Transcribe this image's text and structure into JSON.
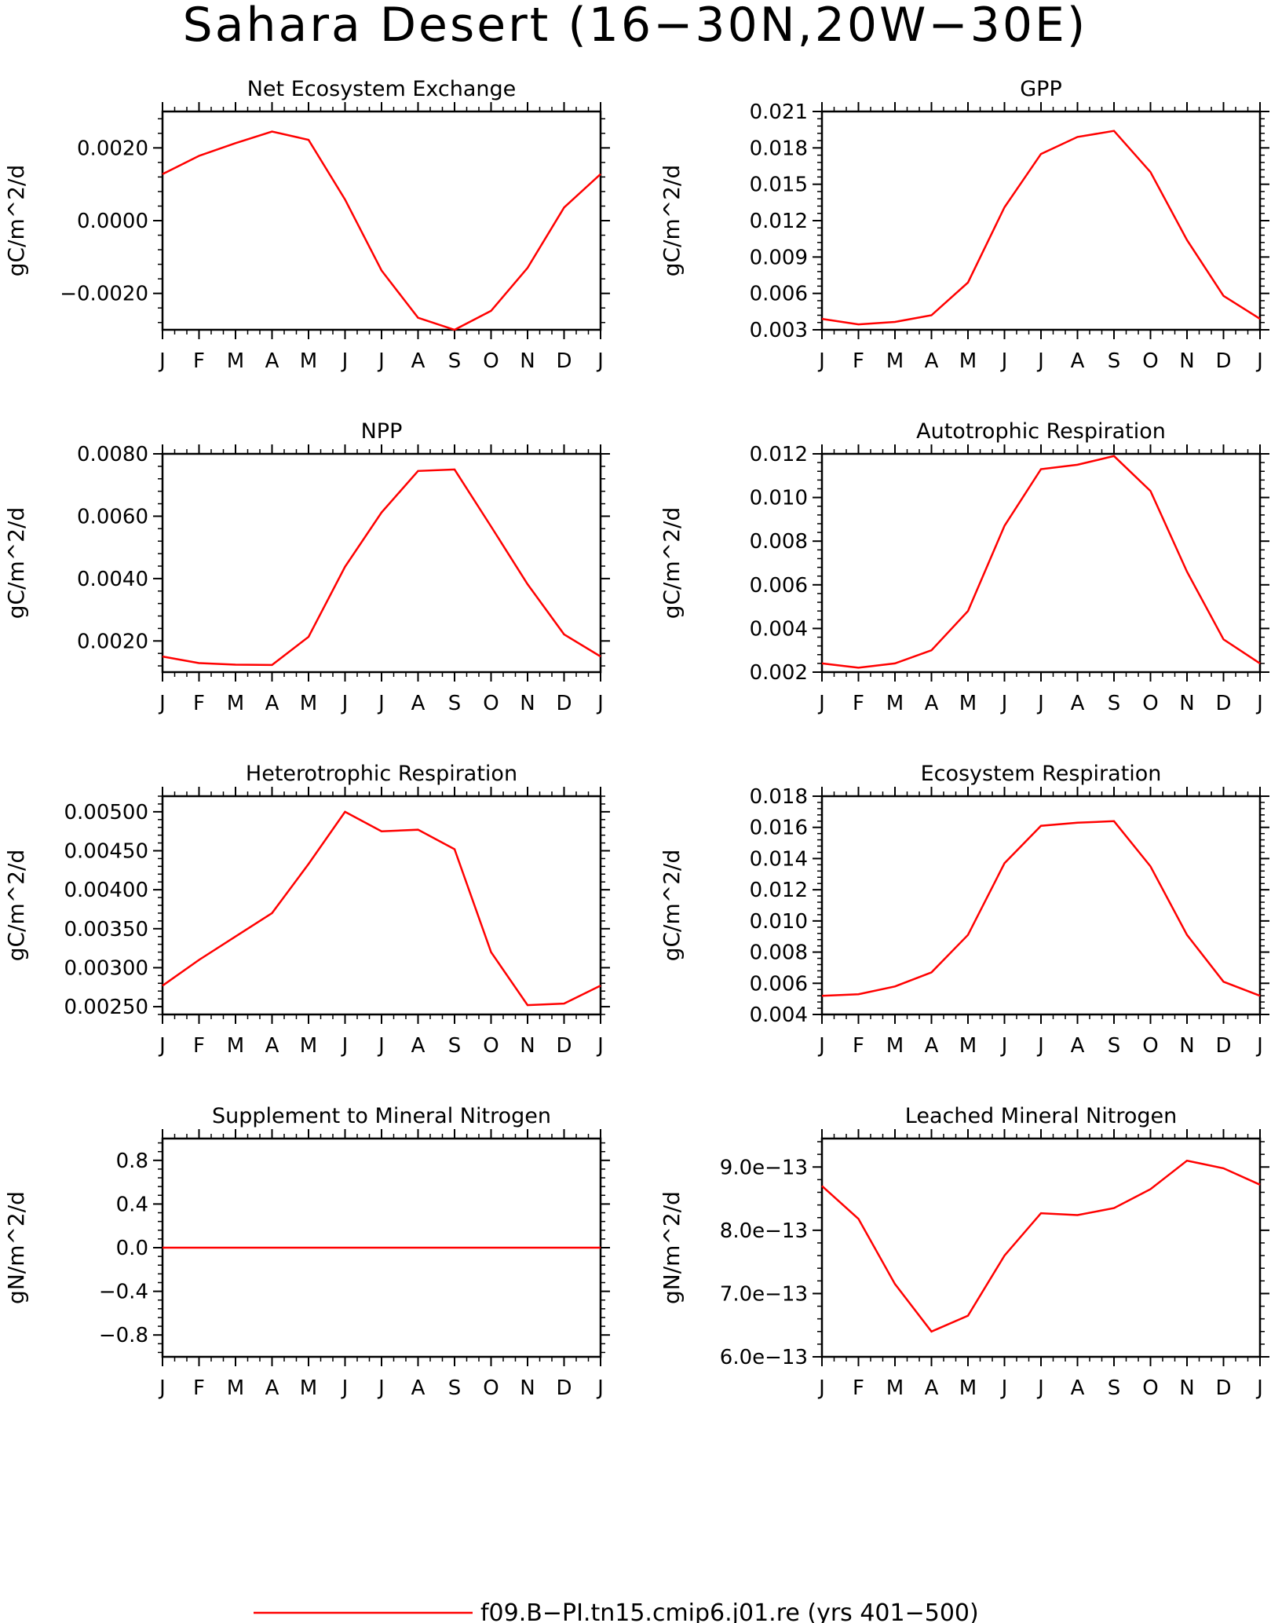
{
  "title": "Sahara Desert (16-30N,20W-30E)",
  "legend": {
    "label": "f09.B-PI.tn15.cmip6.j01.re (yrs 401-500)",
    "color": "#ff0000"
  },
  "months": [
    "J",
    "F",
    "M",
    "A",
    "M",
    "J",
    "J",
    "A",
    "S",
    "O",
    "N",
    "D",
    "J"
  ],
  "chart_data": [
    {
      "type": "line",
      "title": "Net Ecosystem Exchange",
      "ylabel": "gC/m^2/d",
      "x": [
        "J",
        "F",
        "M",
        "A",
        "M",
        "J",
        "J",
        "A",
        "S",
        "O",
        "N",
        "D",
        "J"
      ],
      "ylim": [
        -0.003,
        0.003
      ],
      "yticks": [
        -0.002,
        0.0,
        0.002
      ],
      "ytick_labels": [
        "-0.0020",
        "0.0000",
        "0.0020"
      ],
      "series": [
        {
          "values": [
            0.00128,
            0.00178,
            0.00213,
            0.00245,
            0.00222,
            0.00058,
            -0.00137,
            -0.00267,
            -0.003,
            -0.00248,
            -0.0013,
            0.00036,
            0.00128
          ]
        }
      ]
    },
    {
      "type": "line",
      "title": "GPP",
      "ylabel": "gC/m^2/d",
      "x": [
        "J",
        "F",
        "M",
        "A",
        "M",
        "J",
        "J",
        "A",
        "S",
        "O",
        "N",
        "D",
        "J"
      ],
      "ylim": [
        0.003,
        0.021
      ],
      "yticks": [
        0.003,
        0.006,
        0.009,
        0.012,
        0.015,
        0.018,
        0.021
      ],
      "ytick_labels": [
        "0.003",
        "0.006",
        "0.009",
        "0.012",
        "0.015",
        "0.018",
        "0.021"
      ],
      "series": [
        {
          "values": [
            0.0039,
            0.00345,
            0.00365,
            0.0042,
            0.0069,
            0.0131,
            0.0175,
            0.0189,
            0.0194,
            0.016,
            0.0104,
            0.0058,
            0.0039
          ]
        }
      ]
    },
    {
      "type": "line",
      "title": "NPP",
      "ylabel": "gC/m^2/d",
      "x": [
        "J",
        "F",
        "M",
        "A",
        "M",
        "J",
        "J",
        "A",
        "S",
        "O",
        "N",
        "D",
        "J"
      ],
      "ylim": [
        0.001,
        0.008
      ],
      "yticks": [
        0.002,
        0.004,
        0.006,
        0.008
      ],
      "ytick_labels": [
        "0.0020",
        "0.0040",
        "0.0060",
        "0.0080"
      ],
      "series": [
        {
          "values": [
            0.0015,
            0.00129,
            0.00124,
            0.00123,
            0.00213,
            0.00438,
            0.00612,
            0.00745,
            0.0075,
            0.00567,
            0.00382,
            0.00221,
            0.0015
          ]
        }
      ]
    },
    {
      "type": "line",
      "title": "Autotrophic Respiration",
      "ylabel": "gC/m^2/d",
      "x": [
        "J",
        "F",
        "M",
        "A",
        "M",
        "J",
        "J",
        "A",
        "S",
        "O",
        "N",
        "D",
        "J"
      ],
      "ylim": [
        0.002,
        0.012
      ],
      "yticks": [
        0.002,
        0.004,
        0.006,
        0.008,
        0.01,
        0.012
      ],
      "ytick_labels": [
        "0.002",
        "0.004",
        "0.006",
        "0.008",
        "0.010",
        "0.012"
      ],
      "series": [
        {
          "values": [
            0.0024,
            0.0022,
            0.0024,
            0.003,
            0.0048,
            0.0087,
            0.0113,
            0.0115,
            0.0119,
            0.0103,
            0.0066,
            0.0035,
            0.0024
          ]
        }
      ]
    },
    {
      "type": "line",
      "title": "Heterotrophic Respiration",
      "ylabel": "gC/m^2/d",
      "x": [
        "J",
        "F",
        "M",
        "A",
        "M",
        "J",
        "J",
        "A",
        "S",
        "O",
        "N",
        "D",
        "J"
      ],
      "ylim": [
        0.0024,
        0.0052
      ],
      "yticks": [
        0.0025,
        0.003,
        0.0035,
        0.004,
        0.0045,
        0.005
      ],
      "ytick_labels": [
        "0.00250",
        "0.00300",
        "0.00350",
        "0.00400",
        "0.00450",
        "0.00500"
      ],
      "series": [
        {
          "values": [
            0.00277,
            0.0031,
            0.0034,
            0.0037,
            0.00433,
            0.005,
            0.00475,
            0.00477,
            0.00452,
            0.0032,
            0.00252,
            0.00254,
            0.00277
          ]
        }
      ]
    },
    {
      "type": "line",
      "title": "Ecosystem Respiration",
      "ylabel": "gC/m^2/d",
      "x": [
        "J",
        "F",
        "M",
        "A",
        "M",
        "J",
        "J",
        "A",
        "S",
        "O",
        "N",
        "D",
        "J"
      ],
      "ylim": [
        0.004,
        0.018
      ],
      "yticks": [
        0.004,
        0.006,
        0.008,
        0.01,
        0.012,
        0.014,
        0.016,
        0.018
      ],
      "ytick_labels": [
        "0.004",
        "0.006",
        "0.008",
        "0.010",
        "0.012",
        "0.014",
        "0.016",
        "0.018"
      ],
      "series": [
        {
          "values": [
            0.0052,
            0.0053,
            0.0058,
            0.0067,
            0.0091,
            0.0137,
            0.0161,
            0.0163,
            0.0164,
            0.0135,
            0.0091,
            0.0061,
            0.0052
          ]
        }
      ]
    },
    {
      "type": "line",
      "title": "Supplement to Mineral Nitrogen",
      "ylabel": "gN/m^2/d",
      "x": [
        "J",
        "F",
        "M",
        "A",
        "M",
        "J",
        "J",
        "A",
        "S",
        "O",
        "N",
        "D",
        "J"
      ],
      "ylim": [
        -1.0,
        1.0
      ],
      "yticks": [
        -0.8,
        -0.4,
        0.0,
        0.4,
        0.8
      ],
      "ytick_labels": [
        "-0.8",
        "-0.4",
        "0.0",
        "0.4",
        "0.8"
      ],
      "series": [
        {
          "values": [
            0,
            0,
            0,
            0,
            0,
            0,
            0,
            0,
            0,
            0,
            0,
            0,
            0
          ]
        }
      ]
    },
    {
      "type": "line",
      "title": "Leached Mineral Nitrogen",
      "ylabel": "gN/m^2/d",
      "x": [
        "J",
        "F",
        "M",
        "A",
        "M",
        "J",
        "J",
        "A",
        "S",
        "O",
        "N",
        "D",
        "J"
      ],
      "ylim": [
        6e-13,
        9.45e-13
      ],
      "yticks": [
        6e-13,
        7e-13,
        8e-13,
        9e-13
      ],
      "ytick_labels": [
        "6.0e-13",
        "7.0e-13",
        "8.0e-13",
        "9.0e-13"
      ],
      "series": [
        {
          "values": [
            8.7e-13,
            8.18e-13,
            7.15e-13,
            6.4e-13,
            6.65e-13,
            7.6e-13,
            8.27e-13,
            8.24e-13,
            8.35e-13,
            8.65e-13,
            9.1e-13,
            8.98e-13,
            8.72e-13
          ]
        }
      ]
    }
  ]
}
